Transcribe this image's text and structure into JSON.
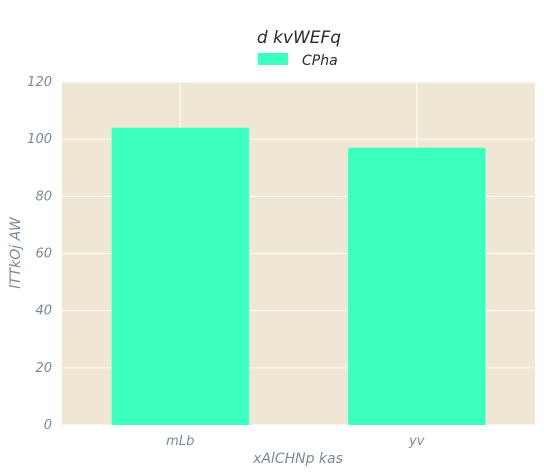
{
  "chart_data": {
    "type": "bar",
    "title": "d kvWEFq",
    "xlabel": "xAlCHNp kas",
    "ylabel": "lTTkOj AW",
    "categories": [
      "mLb",
      "yv"
    ],
    "series": [
      {
        "name": "CPha",
        "values": [
          104,
          97
        ],
        "color": "#3bffbf"
      }
    ],
    "ylim": [
      0,
      120
    ],
    "yticks": [
      0,
      20,
      40,
      60,
      80,
      100,
      120
    ],
    "grid": true,
    "legend": "top-center",
    "background": "#efe7d4"
  }
}
